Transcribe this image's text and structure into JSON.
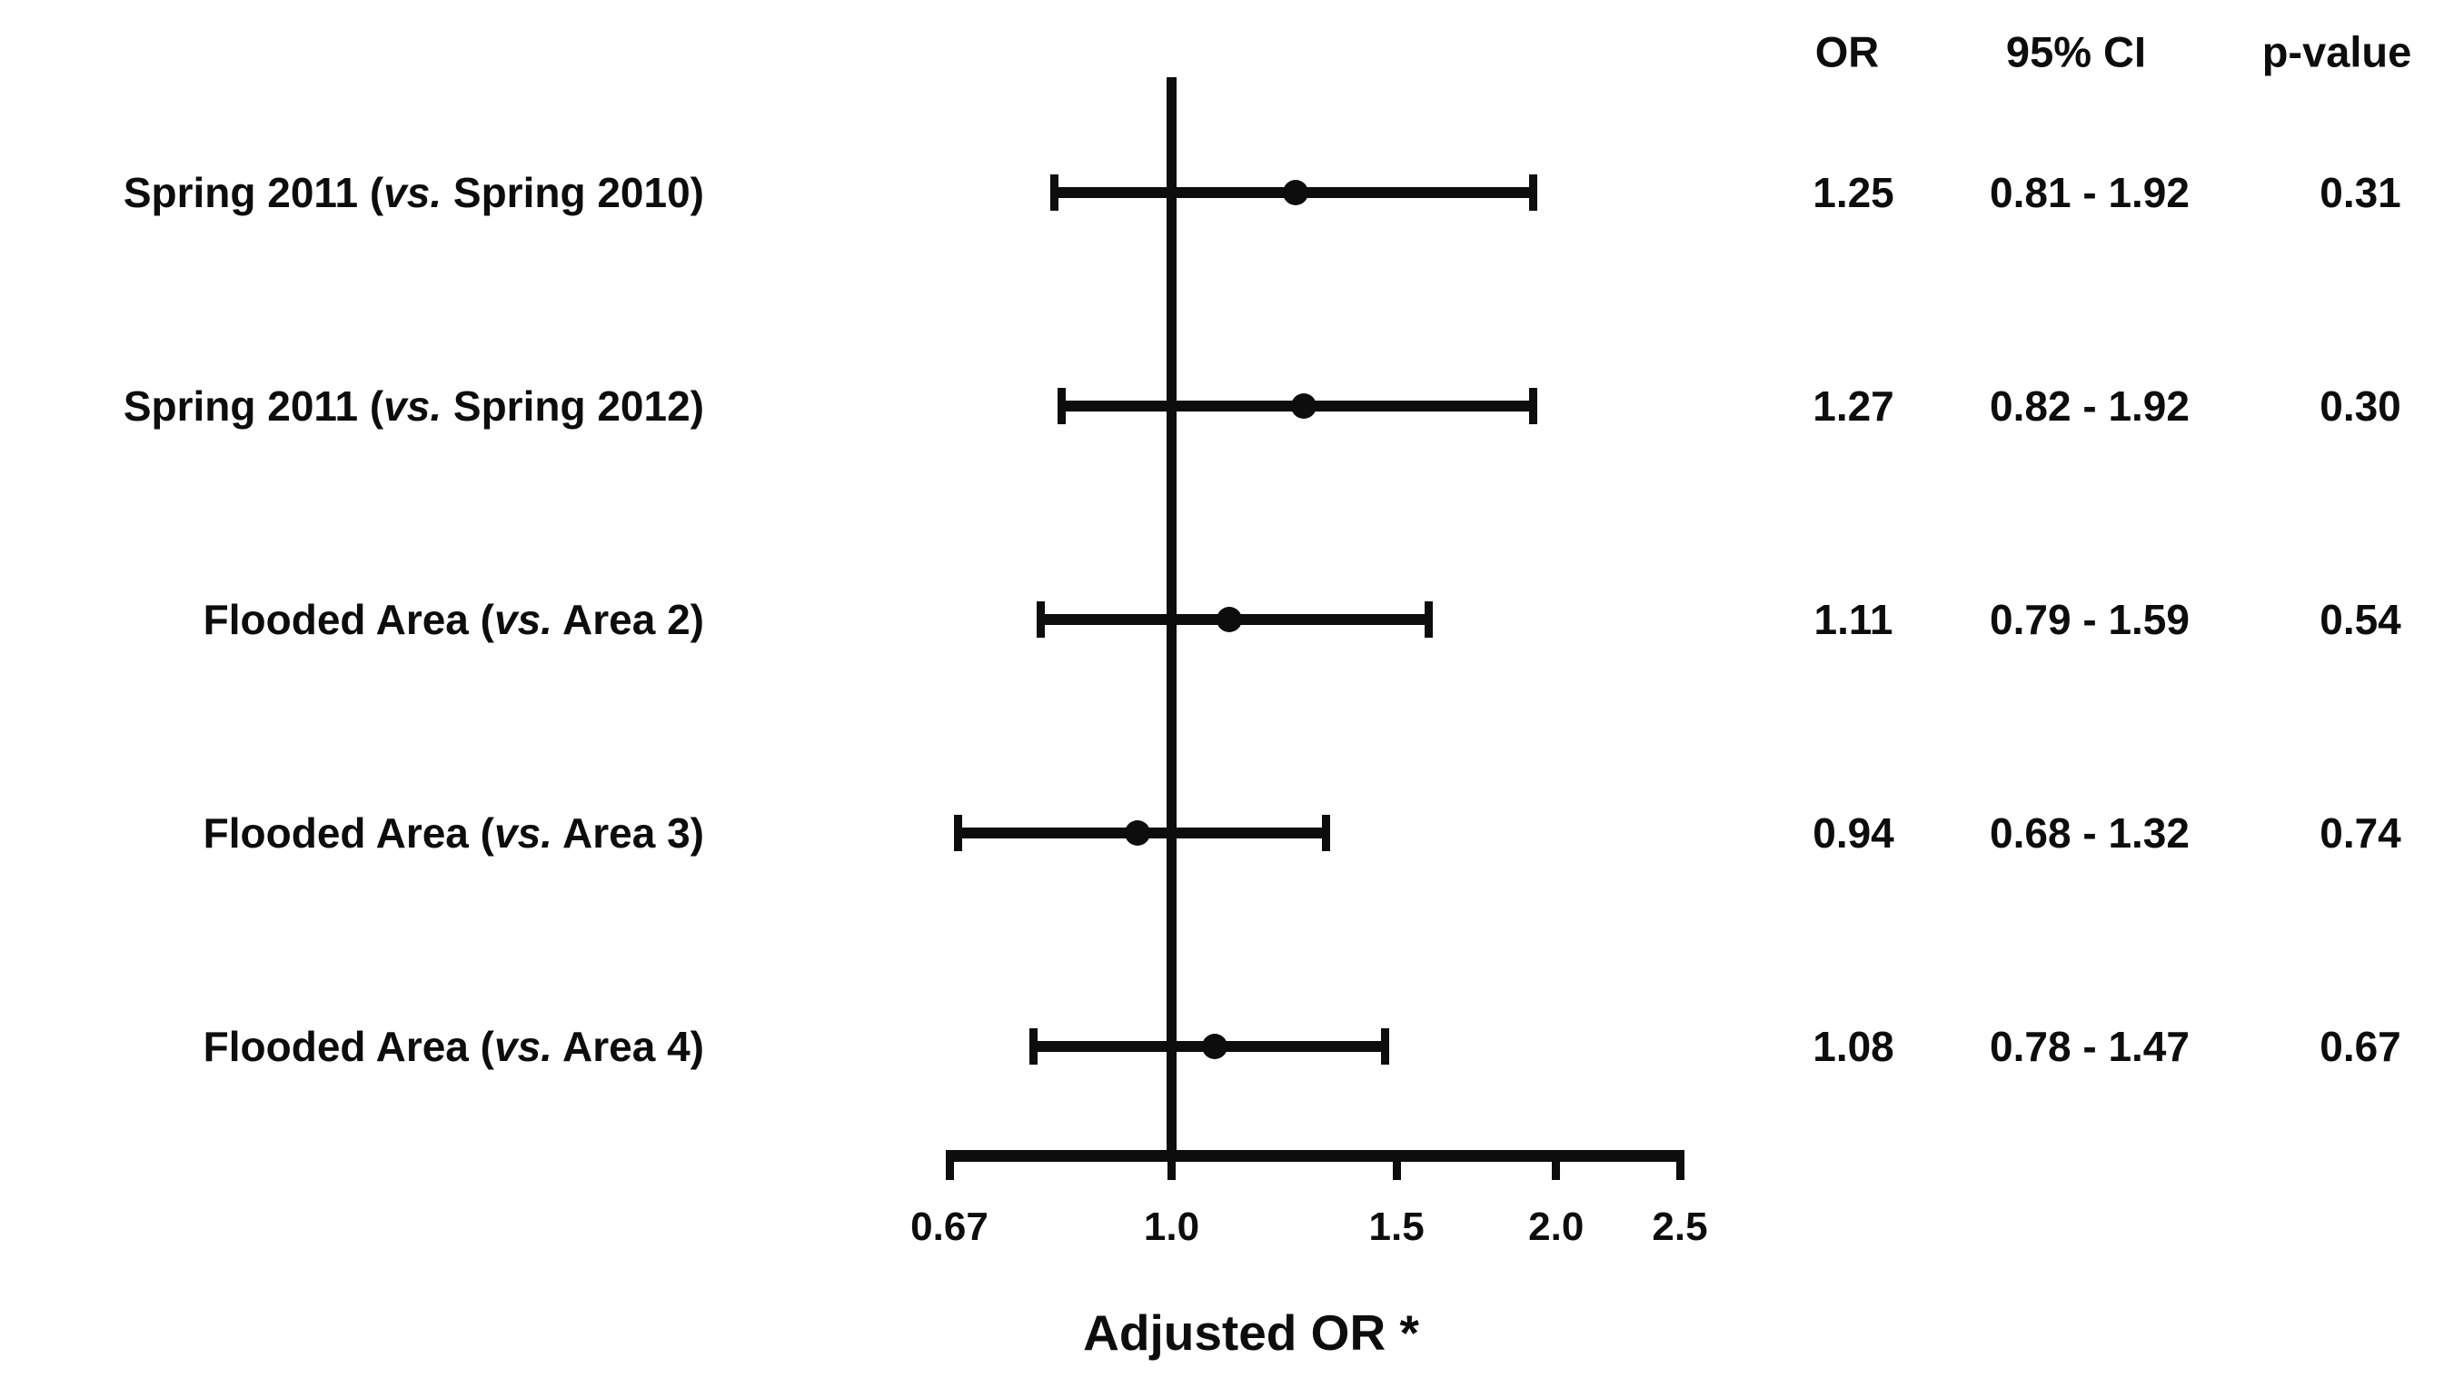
{
  "header": {
    "or": "OR",
    "ci": "95% CI",
    "p": "p-value"
  },
  "chart_data": {
    "type": "scatter",
    "variant": "forest_plot",
    "title": "",
    "xlabel": "Adjusted OR *",
    "x_scale": "log",
    "xlim": [
      0.67,
      2.5
    ],
    "x_ticks": [
      0.67,
      1.0,
      1.5,
      2.0,
      2.5
    ],
    "x_tick_labels": [
      "0.67",
      "1.0",
      "1.5",
      "2.0",
      "2.5"
    ],
    "reference_line": 1.0,
    "grid": "off",
    "legend": "none",
    "columns": {
      "or": "OR",
      "ci": "95% CI",
      "p": "p-value"
    },
    "categories": [
      "Spring 2011 (vs. Spring 2010)",
      "Spring 2011 (vs. Spring 2012)",
      "Flooded Area (vs. Area 2)",
      "Flooded Area (vs. Area 3)",
      "Flooded Area (vs. Area 4)"
    ],
    "rows": [
      {
        "label": "Spring 2011 (vs. Spring 2010)",
        "label_pre": "Spring 2011 (",
        "label_vs": "vs.",
        "label_post": " Spring 2010)",
        "or": 1.25,
        "ci_low": 0.81,
        "ci_high": 1.92,
        "or_text": "1.25",
        "ci_text": "0.81 - 1.92",
        "p_text": "0.31"
      },
      {
        "label": "Spring 2011 (vs. Spring 2012)",
        "label_pre": "Spring 2011 (",
        "label_vs": "vs.",
        "label_post": " Spring 2012)",
        "or": 1.27,
        "ci_low": 0.82,
        "ci_high": 1.92,
        "or_text": "1.27",
        "ci_text": "0.82 - 1.92",
        "p_text": "0.30"
      },
      {
        "label": "Flooded Area (vs. Area 2)",
        "label_pre": "Flooded Area (",
        "label_vs": "vs.",
        "label_post": " Area 2)",
        "or": 1.11,
        "ci_low": 0.79,
        "ci_high": 1.59,
        "or_text": "1.11",
        "ci_text": "0.79 - 1.59",
        "p_text": "0.54"
      },
      {
        "label": "Flooded Area (vs. Area 3)",
        "label_pre": "Flooded Area (",
        "label_vs": "vs.",
        "label_post": " Area 3)",
        "or": 0.94,
        "ci_low": 0.68,
        "ci_high": 1.32,
        "or_text": "0.94",
        "ci_text": "0.68 - 1.32",
        "p_text": "0.74"
      },
      {
        "label": "Flooded Area (vs. Area 4)",
        "label_pre": "Flooded Area (",
        "label_vs": "vs.",
        "label_post": " Area 4)",
        "or": 1.08,
        "ci_low": 0.78,
        "ci_high": 1.47,
        "or_text": "1.08",
        "ci_text": "0.78 - 1.47",
        "p_text": "0.67"
      }
    ],
    "ink_color": "#0d0d0d"
  }
}
